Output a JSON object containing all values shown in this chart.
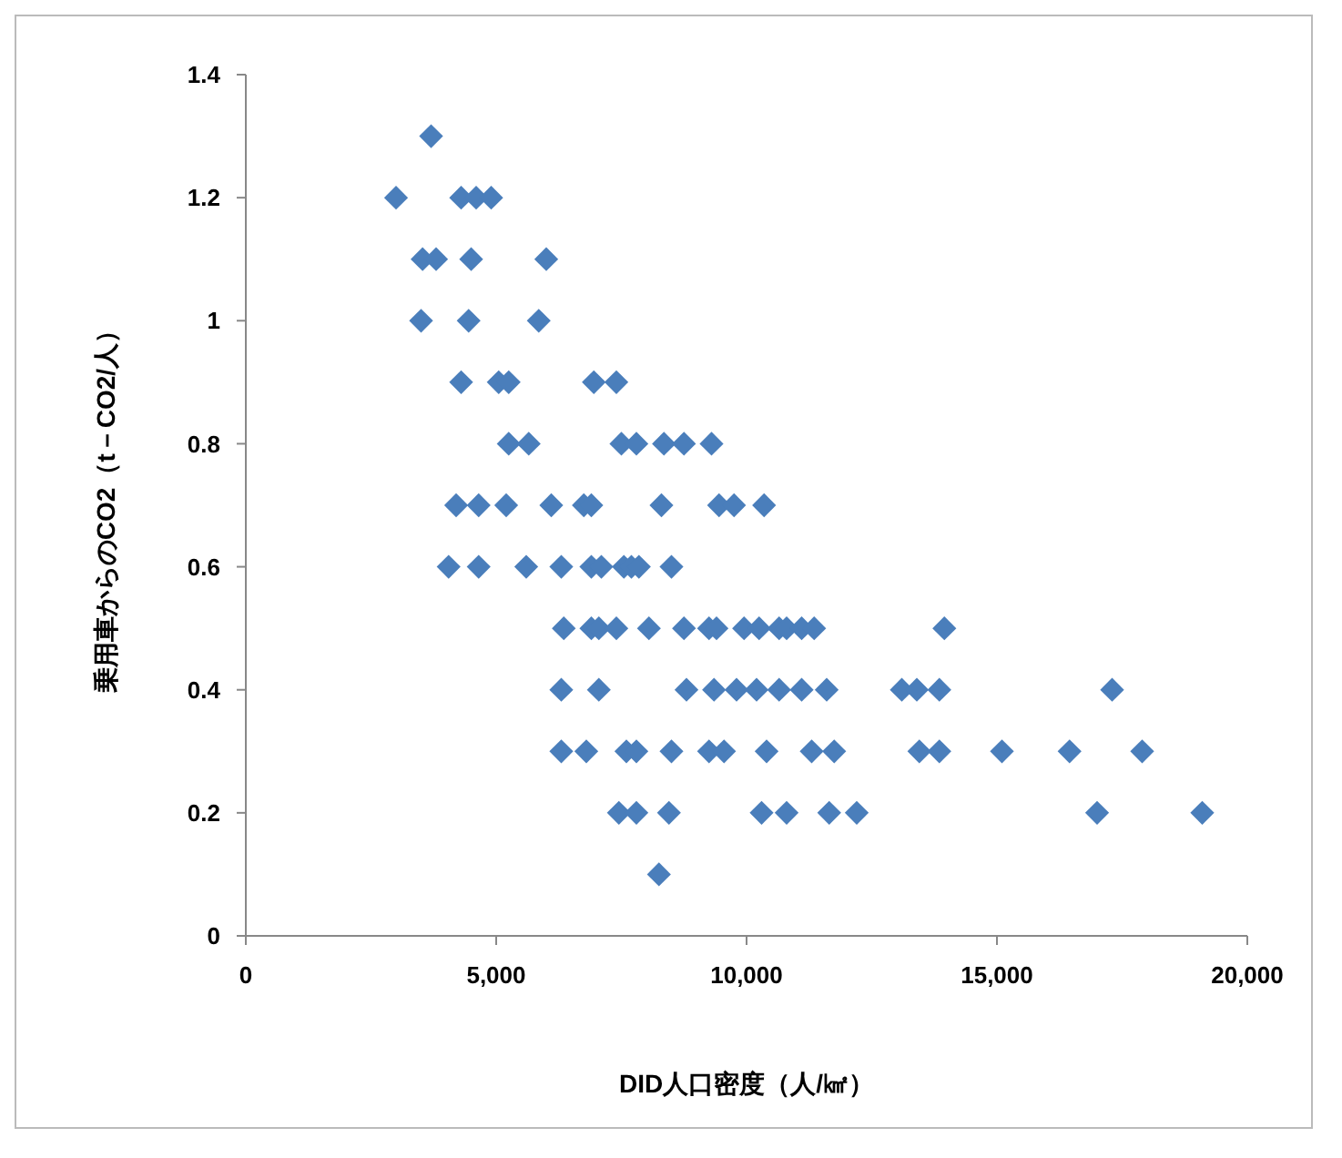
{
  "chart_data": {
    "type": "scatter",
    "xlabel": "DID人口密度（人/㎢）",
    "ylabel": "乗用車からのCO2（t－CO2/人）",
    "xlim": [
      0,
      20000
    ],
    "xticks": [
      {
        "value": 0,
        "label": "0"
      },
      {
        "value": 5000,
        "label": "5,000"
      },
      {
        "value": 10000,
        "label": "10,000"
      },
      {
        "value": 15000,
        "label": "15,000"
      },
      {
        "value": 20000,
        "label": "20,000"
      }
    ],
    "ylim": [
      0,
      1.4
    ],
    "yticks": [
      0,
      0.2,
      0.4,
      0.6,
      0.8,
      1,
      1.2,
      1.4
    ],
    "grid": false,
    "marker": "diamond",
    "series": [
      {
        "color": "#4a7ebb",
        "x": [
          3700,
          3000,
          4300,
          4600,
          4900,
          3530,
          3800,
          4500,
          6000,
          3500,
          4450,
          5850,
          4300,
          5050,
          5250,
          6950,
          7400,
          5250,
          5650,
          7500,
          7800,
          8350,
          8750,
          9300,
          4200,
          4650,
          5200,
          6100,
          6750,
          6900,
          8300,
          9450,
          9750,
          10350,
          4050,
          4650,
          5600,
          6300,
          6900,
          7100,
          7550,
          7700,
          7850,
          8500,
          6350,
          6900,
          7050,
          7400,
          8050,
          8750,
          9250,
          9400,
          9950,
          10250,
          10650,
          10800,
          11100,
          11350,
          13950,
          6300,
          7050,
          8800,
          9350,
          9800,
          10200,
          10650,
          11100,
          11600,
          13100,
          13400,
          13850,
          17300,
          6300,
          6800,
          7600,
          7800,
          8500,
          9250,
          9550,
          10400,
          11300,
          11750,
          13450,
          13850,
          15100,
          16450,
          17900,
          7450,
          7800,
          8450,
          10300,
          10800,
          11650,
          12200,
          17000,
          19100,
          8250
        ],
        "values": [
          1.3,
          1.2,
          1.2,
          1.2,
          1.2,
          1.1,
          1.1,
          1.1,
          1.1,
          1,
          1,
          1,
          0.9,
          0.9,
          0.9,
          0.9,
          0.9,
          0.8,
          0.8,
          0.8,
          0.8,
          0.8,
          0.8,
          0.8,
          0.7,
          0.7,
          0.7,
          0.7,
          0.7,
          0.7,
          0.7,
          0.7,
          0.7,
          0.7,
          0.6,
          0.6,
          0.6,
          0.6,
          0.6,
          0.6,
          0.6,
          0.6,
          0.6,
          0.6,
          0.5,
          0.5,
          0.5,
          0.5,
          0.5,
          0.5,
          0.5,
          0.5,
          0.5,
          0.5,
          0.5,
          0.5,
          0.5,
          0.5,
          0.5,
          0.4,
          0.4,
          0.4,
          0.4,
          0.4,
          0.4,
          0.4,
          0.4,
          0.4,
          0.4,
          0.4,
          0.4,
          0.4,
          0.3,
          0.3,
          0.3,
          0.3,
          0.3,
          0.3,
          0.3,
          0.3,
          0.3,
          0.3,
          0.3,
          0.3,
          0.3,
          0.3,
          0.3,
          0.2,
          0.2,
          0.2,
          0.2,
          0.2,
          0.2,
          0.2,
          0.2,
          0.2,
          0.1
        ]
      }
    ]
  }
}
